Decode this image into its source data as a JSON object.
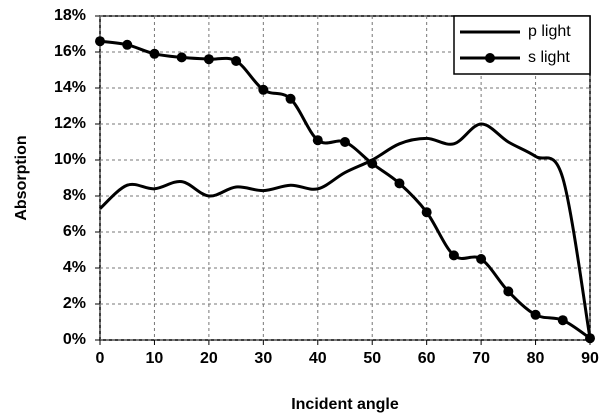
{
  "chart_data": {
    "type": "line",
    "xlabel": "Incident angle",
    "ylabel": "Absorption",
    "x": [
      0,
      5,
      10,
      15,
      20,
      25,
      30,
      35,
      40,
      45,
      50,
      55,
      60,
      65,
      70,
      75,
      80,
      85,
      90
    ],
    "series": [
      {
        "name": "p light",
        "color": "#000000",
        "marker": false,
        "values": [
          7.3,
          8.6,
          8.4,
          8.8,
          8.0,
          8.5,
          8.3,
          8.6,
          8.4,
          9.3,
          10.0,
          10.9,
          11.2,
          10.9,
          12.0,
          11.0,
          10.2,
          9.0,
          0.1
        ]
      },
      {
        "name": "s light",
        "color": "#000000",
        "marker": true,
        "values": [
          16.6,
          16.4,
          15.9,
          15.7,
          15.6,
          15.5,
          13.9,
          13.4,
          11.1,
          11.0,
          9.8,
          8.7,
          7.1,
          4.7,
          4.5,
          2.7,
          1.4,
          1.1,
          0.1
        ]
      }
    ],
    "xlim": [
      0,
      90
    ],
    "xticks": [
      0,
      10,
      20,
      30,
      40,
      50,
      60,
      70,
      80,
      90
    ],
    "ylim": [
      0,
      18
    ],
    "yticks": [
      {
        "value": 0,
        "label": "0%"
      },
      {
        "value": 2,
        "label": "2%"
      },
      {
        "value": 4,
        "label": "4%"
      },
      {
        "value": 6,
        "label": "6%"
      },
      {
        "value": 8,
        "label": "8%"
      },
      {
        "value": 10,
        "label": "10%"
      },
      {
        "value": 12,
        "label": "12%"
      },
      {
        "value": 14,
        "label": "14%"
      },
      {
        "value": 16,
        "label": "16%"
      },
      {
        "value": 18,
        "label": "18%"
      }
    ],
    "grid": true,
    "legend": "upper right"
  }
}
